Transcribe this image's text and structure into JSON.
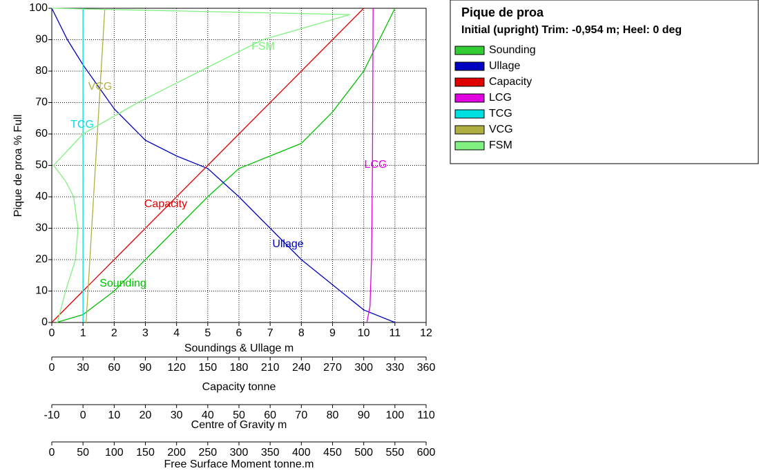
{
  "chart_data": {
    "type": "line",
    "title": "Pique de proa",
    "subtitle": "Initial (upright) Trim: -0,954 m; Heel: 0 deg",
    "y_label": "Pique de proa  % Full",
    "ylim": [
      0,
      100
    ],
    "yticks": [
      0,
      10,
      20,
      30,
      40,
      50,
      60,
      70,
      80,
      90,
      100
    ],
    "grid": true,
    "x_axes": [
      {
        "label": "Soundings & Ullage  m",
        "xlim": [
          0,
          12
        ],
        "xticks": [
          0,
          1,
          2,
          3,
          4,
          5,
          6,
          7,
          8,
          9,
          10,
          11,
          12
        ]
      },
      {
        "label": "Capacity  tonne",
        "xlim": [
          0,
          360
        ],
        "xticks": [
          0,
          30,
          60,
          90,
          120,
          150,
          180,
          210,
          240,
          270,
          300,
          330,
          360
        ]
      },
      {
        "label": "Centre of Gravity  m",
        "xlim": [
          -10,
          110
        ],
        "xticks": [
          -10,
          0,
          10,
          20,
          30,
          40,
          50,
          60,
          70,
          80,
          90,
          100,
          110
        ]
      },
      {
        "label": "Free Surface Moment  tonne.m",
        "xlim": [
          0,
          600
        ],
        "xticks": [
          0,
          50,
          100,
          150,
          200,
          250,
          300,
          350,
          400,
          450,
          500,
          550,
          600
        ]
      }
    ],
    "series": [
      {
        "name": "Sounding",
        "color": "#00c000",
        "legend_color": "#33cc33",
        "x_axis": 0,
        "x": [
          0.15,
          1,
          2,
          3,
          4,
          5,
          6,
          7,
          8,
          9,
          10,
          10.5,
          11
        ],
        "values": [
          0,
          2.5,
          10,
          20,
          30,
          40,
          49,
          53,
          57,
          67,
          80,
          90,
          100
        ]
      },
      {
        "name": "Ullage",
        "color": "#0000c0",
        "legend_color": "#0000c0",
        "x_axis": 0,
        "x": [
          0,
          0.5,
          1,
          1.5,
          2,
          3,
          4,
          5,
          6,
          7,
          8,
          9,
          10,
          11
        ],
        "values": [
          100,
          90,
          82,
          75,
          68,
          58,
          53,
          49,
          40,
          30,
          20,
          12,
          4,
          0
        ]
      },
      {
        "name": "Capacity",
        "color": "#e00000",
        "legend_color": "#e00000",
        "x_axis": 1,
        "x": [
          0,
          30,
          60,
          90,
          120,
          150,
          180,
          210,
          240,
          270,
          300
        ],
        "values": [
          0,
          10,
          20,
          30,
          40,
          50,
          60,
          70,
          80,
          90,
          100
        ]
      },
      {
        "name": "LCG",
        "color": "#e000e0",
        "legend_color": "#e000e0",
        "x_axis": 2,
        "x": [
          91,
          92,
          92.5,
          92.8,
          93
        ],
        "values": [
          0,
          5,
          20,
          50,
          100
        ]
      },
      {
        "name": "TCG",
        "color": "#00e0e0",
        "legend_color": "#00e0e0",
        "x_axis": 2,
        "x": [
          0,
          0
        ],
        "values": [
          0,
          100
        ]
      },
      {
        "name": "VCG",
        "color": "#b0b040",
        "legend_color": "#b0b040",
        "x_axis": 2,
        "x": [
          1,
          7
        ],
        "values": [
          0,
          100
        ]
      },
      {
        "name": "FSM",
        "color": "#80f080",
        "legend_color": "#80f080",
        "x_axis": 3,
        "x": [
          9,
          22,
          38,
          42,
          35,
          22,
          3,
          50,
          138,
          238,
          338,
          478,
          0
        ],
        "values": [
          0,
          10,
          20,
          30,
          40,
          45,
          50,
          60,
          70,
          80,
          90,
          98,
          100
        ]
      }
    ]
  }
}
